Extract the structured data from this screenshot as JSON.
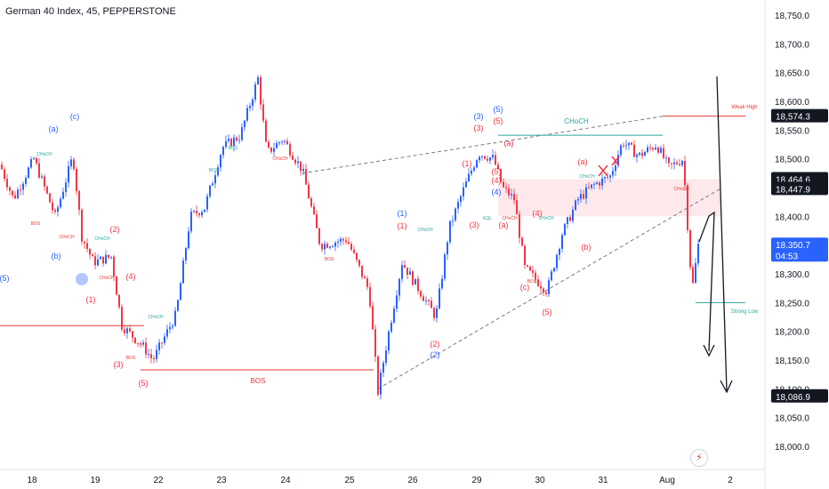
{
  "header": {
    "title": "German 40 Index, 45, PEPPERSTONE"
  },
  "chart_data": {
    "type": "candlestick",
    "symbol": "German 40 Index",
    "interval": "45",
    "source": "PEPPERSTONE",
    "ylim": [
      17970,
      18790
    ],
    "y_ticks": [
      18000,
      18050,
      18100,
      18150,
      18200,
      18250,
      18300,
      18350,
      18400,
      18450,
      18500,
      18550,
      18600,
      18650,
      18700,
      18750
    ],
    "y_tick_labels": [
      "18,000.0",
      "18,050.0",
      "18,100.0",
      "18,150.0",
      "18,200.0",
      "18,250.0",
      "18,300.0",
      "18,350.0",
      "18,400.0",
      "18,450.0",
      "18,500.0",
      "18,550.0",
      "18,600.0",
      "18,650.0",
      "18,700.0",
      "18,750.0"
    ],
    "x_tick_labels": [
      "18",
      "19",
      "22",
      "23",
      "24",
      "25",
      "26",
      "29",
      "30",
      "31",
      "Aug",
      "2"
    ],
    "price_tags": [
      {
        "label": "18,574.3",
        "value": 18574.3,
        "color": "#131722"
      },
      {
        "label": "18,464.6",
        "value": 18464.6,
        "color": "#131722"
      },
      {
        "label": "18,447.9",
        "value": 18447.9,
        "color": "#131722"
      },
      {
        "label": "18,350.7",
        "value": 18350.7,
        "color": "#2962ff"
      },
      {
        "label": "04:53",
        "value": 18332,
        "color": "#2962ff"
      },
      {
        "label": "18,086.9",
        "value": 18086.9,
        "color": "#131722"
      }
    ],
    "annotations": [
      {
        "text": "Weak High",
        "color": "#e53935"
      },
      {
        "text": "Strong Low",
        "color": "#26a69a"
      },
      {
        "text": "CHoCH",
        "color": "#26a69a"
      },
      {
        "text": "BOS",
        "color": "#e53935"
      },
      {
        "text": "EQL",
        "color": "#26a69a"
      }
    ],
    "wave_labels": [
      "(5)",
      "(a)",
      "(c)",
      "(b)",
      "(1)",
      "(2)",
      "(3)",
      "(4)",
      "(5)",
      "(1)",
      "(2)",
      "(3)",
      "(4)",
      "(5)",
      "(a)",
      "(b)",
      "(c)"
    ],
    "colors": {
      "up": "#2962ff",
      "down": "#f23645",
      "choch": "#26a69a",
      "bos": "#e53935",
      "zone": "#fce4e6"
    }
  }
}
